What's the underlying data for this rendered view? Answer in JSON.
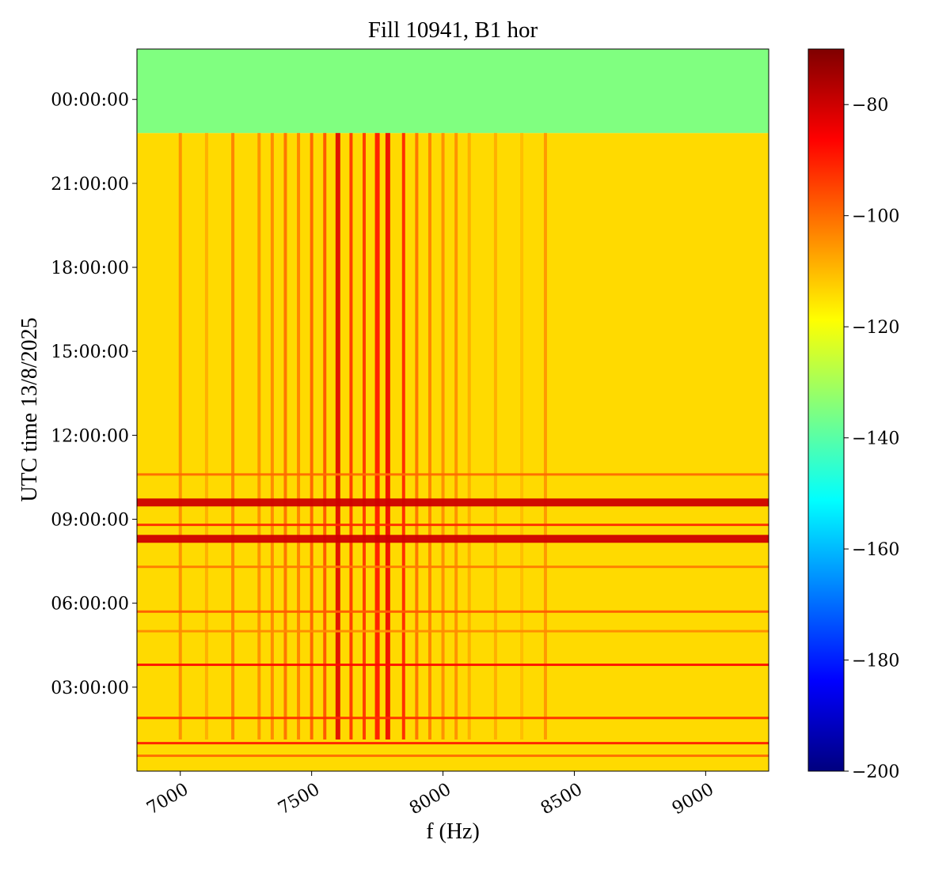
{
  "chart_data": {
    "type": "heatmap",
    "title": "Fill 10941, B1 hor",
    "xlabel": "f (Hz)",
    "ylabel": "UTC time 13/8/2025",
    "xlim": [
      6835,
      9240
    ],
    "x_ticks": [
      7000,
      7500,
      8000,
      8500,
      9000
    ],
    "y_axis_time_hours": [
      0.0,
      25.8
    ],
    "y_ticks": [
      {
        "hours": 3,
        "label": "03:00:00"
      },
      {
        "hours": 6,
        "label": "06:00:00"
      },
      {
        "hours": 9,
        "label": "09:00:00"
      },
      {
        "hours": 12,
        "label": "12:00:00"
      },
      {
        "hours": 15,
        "label": "15:00:00"
      },
      {
        "hours": 18,
        "label": "18:00:00"
      },
      {
        "hours": 21,
        "label": "21:00:00"
      },
      {
        "hours": 24,
        "label": "00:00:00"
      }
    ],
    "colorbar": {
      "colormap": "jet",
      "range": [
        -200,
        -70
      ],
      "ticks": [
        -200,
        -180,
        -160,
        -140,
        -120,
        -100,
        -80
      ],
      "tick_labels": [
        "−200",
        "−180",
        "−160",
        "−140",
        "−120",
        "−100",
        "−80"
      ]
    },
    "background_level": -114,
    "pre_fill_level": -135,
    "pre_fill_start_hours": 22.8,
    "vertical_lines_hz": [
      {
        "f": 7000,
        "level": -104
      },
      {
        "f": 7100,
        "level": -108
      },
      {
        "f": 7200,
        "level": -102
      },
      {
        "f": 7300,
        "level": -104
      },
      {
        "f": 7350,
        "level": -103
      },
      {
        "f": 7400,
        "level": -100
      },
      {
        "f": 7450,
        "level": -102
      },
      {
        "f": 7500,
        "level": -98
      },
      {
        "f": 7550,
        "level": -96
      },
      {
        "f": 7600,
        "level": -82
      },
      {
        "f": 7650,
        "level": -92
      },
      {
        "f": 7700,
        "level": -92
      },
      {
        "f": 7750,
        "level": -88
      },
      {
        "f": 7790,
        "level": -84
      },
      {
        "f": 7850,
        "level": -90
      },
      {
        "f": 7900,
        "level": -100
      },
      {
        "f": 7950,
        "level": -102
      },
      {
        "f": 8000,
        "level": -104
      },
      {
        "f": 8050,
        "level": -104
      },
      {
        "f": 8100,
        "level": -108
      },
      {
        "f": 8200,
        "level": -108
      },
      {
        "f": 8300,
        "level": -110
      },
      {
        "f": 8390,
        "level": -105
      }
    ],
    "horizontal_bands_hours": [
      {
        "t": 0.55,
        "level": -100
      },
      {
        "t": 1.0,
        "level": -90
      },
      {
        "t": 1.9,
        "level": -92
      },
      {
        "t": 3.8,
        "level": -88
      },
      {
        "t": 5.0,
        "level": -104
      },
      {
        "t": 5.7,
        "level": -98
      },
      {
        "t": 7.3,
        "level": -102
      },
      {
        "t": 8.3,
        "level": -80
      },
      {
        "t": 8.8,
        "level": -92
      },
      {
        "t": 9.6,
        "level": -80
      },
      {
        "t": 10.6,
        "level": -100
      }
    ]
  }
}
